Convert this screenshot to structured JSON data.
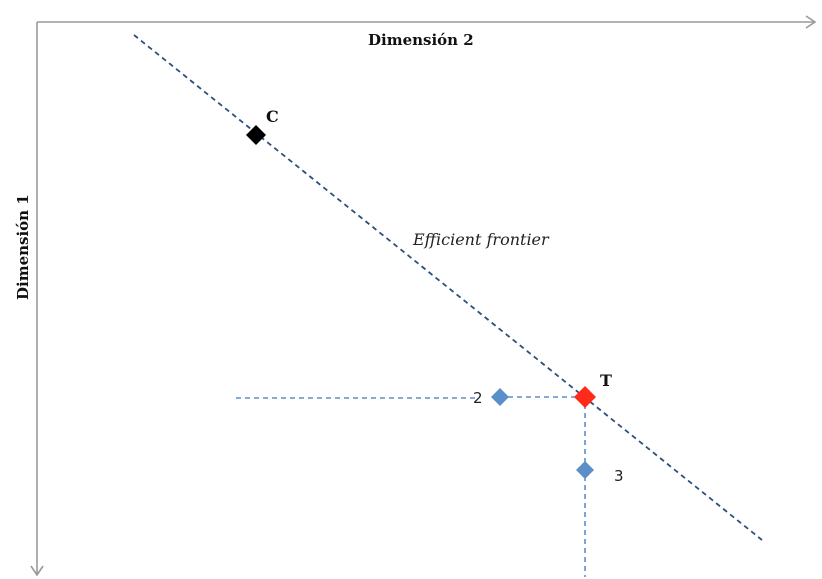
{
  "axes": {
    "horizontal_title": "Dimensión 2",
    "vertical_title": "Dimensión 1"
  },
  "frontier": {
    "label": "Efficient frontier"
  },
  "points": {
    "c": {
      "label": "C",
      "color": "#000000"
    },
    "t": {
      "label": "T",
      "color": "#ff2a1a"
    },
    "p2": {
      "label": "2",
      "color": "#5b8fc9"
    },
    "p3": {
      "label": "3",
      "color": "#5b8fc9"
    }
  },
  "colors": {
    "axis": "#9a9a9a",
    "frontier": "#2d4f7a",
    "guides": "#5b8fc9"
  }
}
